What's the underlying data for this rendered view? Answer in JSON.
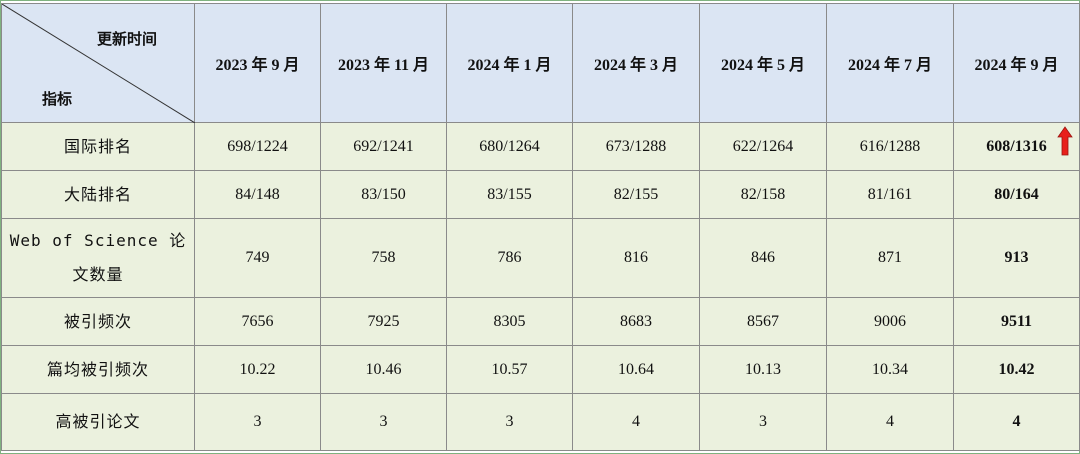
{
  "header": {
    "time_label": "更新时间",
    "metric_label": "指标",
    "columns": [
      "2023 年 9 月",
      "2023 年 11 月",
      "2024 年 1 月",
      "2024 年 3 月",
      "2024 年 5 月",
      "2024 年 7 月",
      "2024 年 9 月"
    ]
  },
  "table": {
    "rows": [
      {
        "label": "国际排名",
        "values": [
          "698/1224",
          "692/1241",
          "680/1264",
          "673/1288",
          "622/1264",
          "616/1288",
          "608/1316"
        ]
      },
      {
        "label": "大陆排名",
        "values": [
          "84/148",
          "83/150",
          "83/155",
          "82/155",
          "82/158",
          "81/161",
          "80/164"
        ]
      },
      {
        "label": "Web of Science 论文数量",
        "values": [
          "749",
          "758",
          "786",
          "816",
          "846",
          "871",
          "913"
        ]
      },
      {
        "label": "被引频次",
        "values": [
          "7656",
          "7925",
          "8305",
          "8683",
          "8567",
          "9006",
          "9511"
        ]
      },
      {
        "label": "篇均被引频次",
        "values": [
          "10.22",
          "10.46",
          "10.57",
          "10.64",
          "10.13",
          "10.34",
          "10.42"
        ]
      },
      {
        "label": "高被引论文",
        "values": [
          "3",
          "3",
          "3",
          "4",
          "3",
          "4",
          "4"
        ]
      }
    ]
  }
}
